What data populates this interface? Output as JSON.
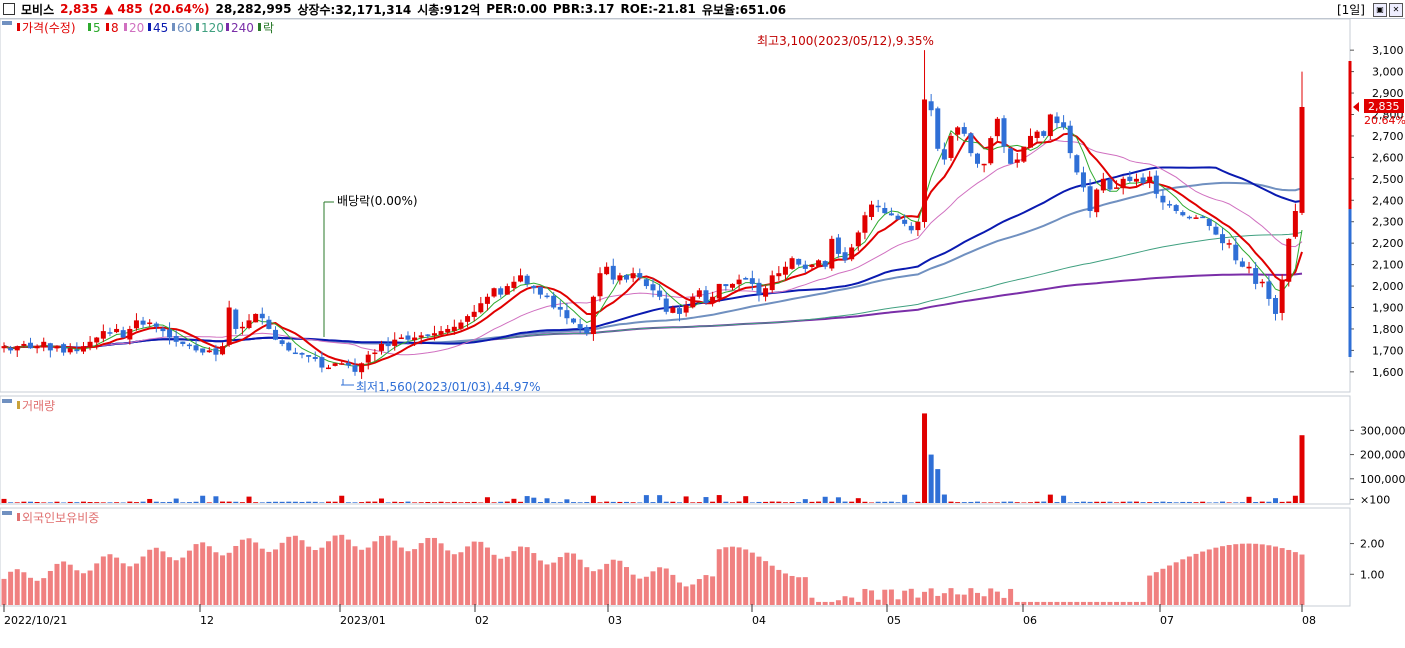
{
  "header": {
    "name": "모비스",
    "price": "2,835",
    "change": "▲ 485",
    "change_pct": "(20.64%)",
    "volume": "28,282,995",
    "listed": "상장수:32,171,314",
    "mktcap": "시총:912억",
    "per": "PER:0.00",
    "pbr": "PBR:3.17",
    "roe": "ROE:-21.81",
    "float": "유보율:651.06",
    "period": "[1일]"
  },
  "legend": {
    "price": "가격(수정)",
    "ma5": "5",
    "ma8": "8",
    "ma20": "20",
    "ma45": "45",
    "ma60": "60",
    "ma120": "120",
    "ma240": "240",
    "rak": "락",
    "volume": "거래량",
    "foreign": "외국인보유비중"
  },
  "annotations": {
    "high": "최고3,100(2023/05/12),9.35%",
    "low": "최저1,560(2023/01/03),44.97%",
    "dividend": "배당락(0.00%)",
    "current_price": "2,835",
    "current_pct": "20.64%"
  },
  "colors": {
    "up": "#e00000",
    "down": "#2f6fd6",
    "ma5": "#2eaa2e",
    "ma8": "#e00000",
    "ma20": "#d070c0",
    "ma45": "#0a1ab0",
    "ma60": "#7090c0",
    "ma120": "#40a080",
    "ma240": "#7a2ea8"
  },
  "chart_data": [
    {
      "type": "candlestick",
      "title": "가격(수정)",
      "x_labels": [
        "2022/10/21",
        "12",
        "2023/01",
        "02",
        "03",
        "04",
        "05",
        "06",
        "07",
        "08"
      ],
      "y_ticks": [
        "1,600",
        "1,700",
        "1,800",
        "1,900",
        "2,000",
        "2,100",
        "2,200",
        "2,300",
        "2,400",
        "2,500",
        "2,600",
        "2,700",
        "2,800",
        "2,900",
        "3,000",
        "3,100"
      ],
      "ylim": [
        1520,
        3180
      ],
      "closes": [
        1720,
        1700,
        1720,
        1730,
        1710,
        1720,
        1740,
        1700,
        1720,
        1690,
        1710,
        1700,
        1720,
        1740,
        1760,
        1790,
        1780,
        1800,
        1760,
        1800,
        1840,
        1820,
        1830,
        1810,
        1790,
        1760,
        1740,
        1730,
        1720,
        1700,
        1690,
        1700,
        1680,
        1720,
        1900,
        1800,
        1810,
        1840,
        1870,
        1850,
        1800,
        1750,
        1730,
        1700,
        1690,
        1680,
        1670,
        1660,
        1620,
        1620,
        1640,
        1640,
        1630,
        1600,
        1640,
        1680,
        1690,
        1730,
        1720,
        1750,
        1760,
        1750,
        1760,
        1770,
        1770,
        1780,
        1790,
        1800,
        1810,
        1830,
        1860,
        1880,
        1920,
        1950,
        1990,
        1960,
        2000,
        2020,
        2050,
        2010,
        1990,
        1960,
        1950,
        1900,
        1890,
        1850,
        1830,
        1800,
        1780,
        1950,
        2060,
        2090,
        2030,
        2050,
        2030,
        2060,
        2040,
        2000,
        1980,
        1950,
        1880,
        1900,
        1870,
        1910,
        1950,
        1980,
        1920,
        1950,
        2010,
        2000,
        2010,
        2030,
        2030,
        2010,
        1960,
        1990,
        2050,
        2060,
        2090,
        2130,
        2100,
        2080,
        2100,
        2120,
        2090,
        2220,
        2150,
        2120,
        2180,
        2250,
        2330,
        2380,
        2370,
        2340,
        2330,
        2310,
        2290,
        2260,
        2300,
        2870,
        2820,
        2640,
        2590,
        2700,
        2740,
        2710,
        2620,
        2570,
        2570,
        2690,
        2780,
        2650,
        2570,
        2590,
        2650,
        2700,
        2720,
        2700,
        2800,
        2760,
        2740,
        2620,
        2530,
        2460,
        2350,
        2450,
        2500,
        2450,
        2460,
        2500,
        2490,
        2500,
        2480,
        2510,
        2430,
        2390,
        2380,
        2350,
        2330,
        2320,
        2320,
        2320,
        2280,
        2240,
        2200,
        2200,
        2120,
        2090,
        2090,
        2010,
        2020,
        1940,
        1870,
        2030,
        2220,
        2350,
        2835
      ],
      "ma_lines": [
        "5",
        "8",
        "20",
        "45",
        "60",
        "120",
        "240"
      ],
      "current_price": 2835,
      "high": 3100,
      "low": 1560
    },
    {
      "type": "bar",
      "title": "거래량",
      "y_ticks": [
        "×100",
        "100,000",
        "200,000",
        "300,000"
      ],
      "spikes": [
        {
          "label": "2023/05/12",
          "value": 370000
        },
        {
          "label": "last",
          "value": 280000
        }
      ]
    },
    {
      "type": "bar",
      "title": "외국인보유비중",
      "y_ticks": [
        "1.00",
        "2.00"
      ]
    }
  ]
}
